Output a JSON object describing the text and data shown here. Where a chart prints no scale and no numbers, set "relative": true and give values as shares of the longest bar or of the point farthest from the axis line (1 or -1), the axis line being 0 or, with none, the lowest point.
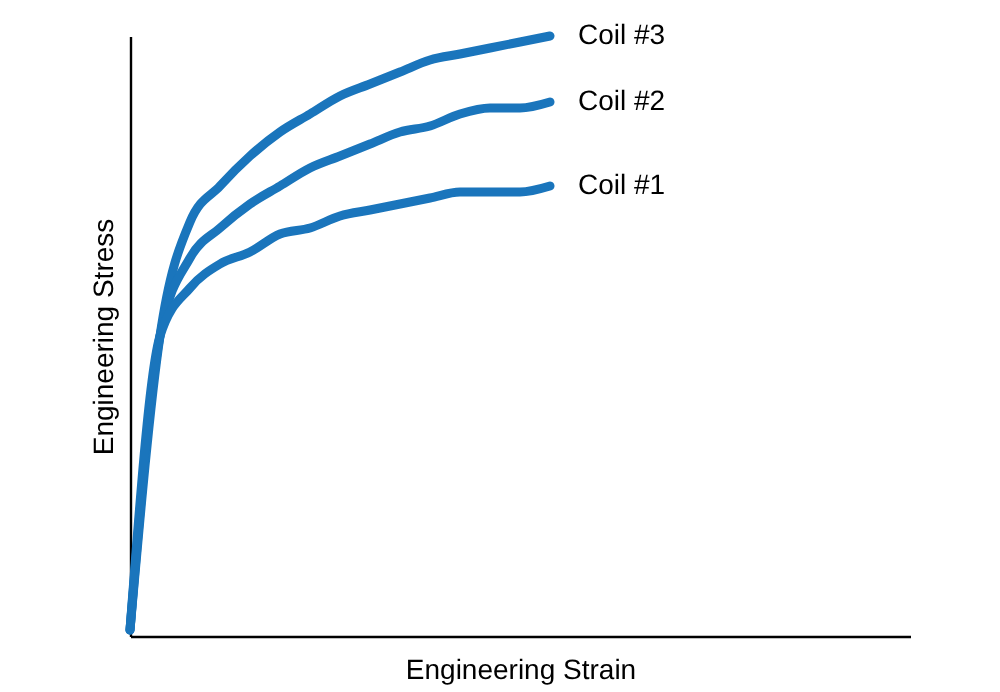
{
  "chart_data": {
    "type": "line",
    "relative": true,
    "xlabel": "Engineering Strain",
    "ylabel": "Engineering Stress",
    "grid": false,
    "legend": false,
    "marker": "none",
    "line_style": "solid",
    "categories": [
      null,
      null,
      null,
      null,
      null,
      null,
      null,
      null,
      null,
      null,
      null,
      null,
      null,
      null,
      null,
      null,
      null,
      null,
      null,
      null,
      null,
      null,
      null,
      null,
      null,
      null,
      null
    ],
    "series": [
      {
        "name": "Coil #3",
        "color": "#1a75bc",
        "values": [
          0.01,
          0.5,
          0.69,
          0.75,
          0.8,
          0.84,
          0.87,
          0.9,
          0.92,
          0.94,
          0.96,
          0.97,
          0.98,
          0.99,
          1.0,
          null,
          null,
          null,
          null,
          null,
          null,
          null,
          null,
          null,
          null,
          null,
          null
        ]
      },
      {
        "name": "Coil #2",
        "color": "#1a75bc",
        "values": [
          0.01,
          0.5,
          0.63,
          0.68,
          0.72,
          0.75,
          0.78,
          0.8,
          0.82,
          0.84,
          0.85,
          0.87,
          0.88,
          0.88,
          0.89,
          null,
          null,
          null,
          null,
          null,
          null,
          null,
          null,
          null,
          null,
          null,
          null
        ]
      },
      {
        "name": "Coil #1",
        "color": "#1a75bc",
        "values": [
          0.01,
          0.5,
          0.58,
          0.62,
          0.64,
          0.67,
          0.68,
          0.7,
          0.71,
          0.72,
          0.73,
          0.74,
          0.74,
          0.74,
          0.75,
          null,
          null,
          null,
          null,
          null,
          null,
          null,
          null,
          null,
          null,
          null,
          null
        ]
      }
    ]
  }
}
